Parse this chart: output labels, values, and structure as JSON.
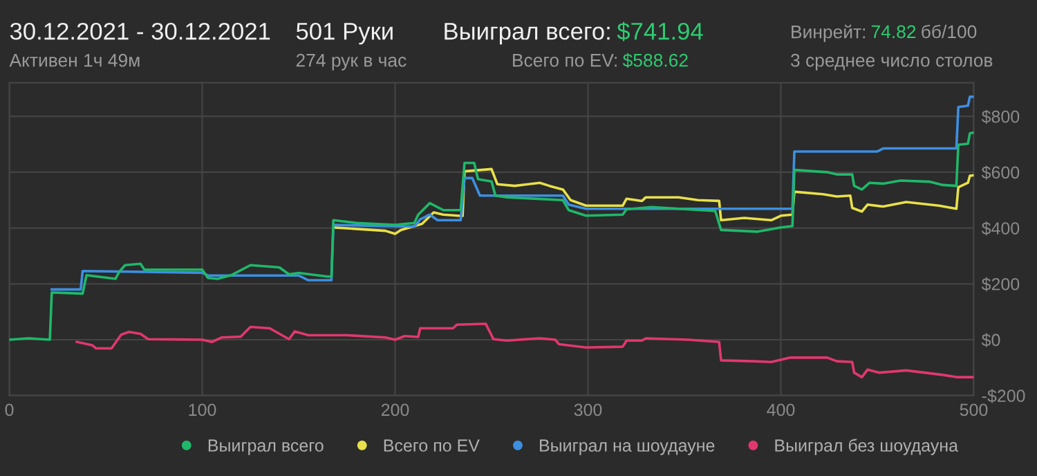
{
  "chart_data": {
    "type": "line",
    "title": "30.12.2021 - 30.12.2021",
    "subtitle": "Активен 1ч 49м",
    "annotations": [
      "501 Руки",
      "274 рук в час",
      "Выиграл всего:",
      "$741.94",
      "Всего по EV:",
      "$588.62",
      "Винрейт:",
      "74.82",
      "бб/100",
      "3 среднее число столов"
    ],
    "xlim": [
      0,
      500
    ],
    "ylim": [
      -200,
      920
    ],
    "xticks": [
      0,
      100,
      200,
      300,
      400,
      500
    ],
    "yticks": [
      {
        "value": -200,
        "label": "-$200"
      },
      {
        "value": 0,
        "label": "$0"
      },
      {
        "value": 200,
        "label": "$200"
      },
      {
        "value": 400,
        "label": "$400"
      },
      {
        "value": 600,
        "label": "$600"
      },
      {
        "value": 800,
        "label": "$800"
      }
    ],
    "grid": true,
    "legend": "bottom",
    "line_style": "solid",
    "series": [
      {
        "name": "Выиграл всего",
        "color": "#1fb86a",
        "x": [
          0,
          10,
          21,
          22,
          38,
          40,
          55,
          57,
          60,
          68,
          70,
          100,
          103,
          108,
          115,
          125,
          140,
          145,
          150,
          165,
          167,
          168,
          180,
          200,
          210,
          212,
          218,
          225,
          234,
          236,
          241,
          243,
          250,
          252,
          258,
          287,
          290,
          299,
          318,
          320,
          333,
          366,
          369,
          388,
          400,
          406,
          407,
          424,
          429,
          437,
          438,
          442,
          446,
          453,
          462,
          477,
          484,
          491,
          492,
          497,
          498,
          500
        ],
        "values": [
          0,
          5,
          0,
          169,
          165,
          231,
          218,
          243,
          267,
          272,
          251,
          251,
          221,
          218,
          231,
          267,
          259,
          234,
          239,
          226,
          226,
          428,
          418,
          411,
          418,
          448,
          489,
          464,
          464,
          633,
          633,
          575,
          567,
          516,
          510,
          500,
          464,
          444,
          448,
          467,
          475,
          461,
          393,
          387,
          402,
          407,
          608,
          600,
          592,
          592,
          551,
          538,
          562,
          559,
          570,
          566,
          554,
          551,
          698,
          702,
          739,
          742
        ]
      },
      {
        "name": "Всего по EV",
        "color": "#e8e04a",
        "x": [
          168,
          195,
          200,
          203,
          214,
          220,
          225,
          235,
          236,
          250,
          253,
          262,
          275,
          280,
          287,
          291,
          299,
          318,
          320,
          328,
          330,
          347,
          357,
          368,
          369,
          381,
          395,
          400,
          406,
          407,
          422,
          429,
          436,
          437,
          442,
          445,
          453,
          465,
          482,
          491,
          492,
          497,
          498,
          500
        ],
        "values": [
          402,
          390,
          379,
          393,
          415,
          456,
          448,
          443,
          603,
          611,
          557,
          551,
          562,
          551,
          538,
          500,
          480,
          480,
          505,
          497,
          510,
          510,
          500,
          497,
          428,
          436,
          428,
          444,
          448,
          530,
          521,
          513,
          516,
          472,
          459,
          484,
          477,
          493,
          480,
          469,
          546,
          562,
          587,
          589
        ]
      },
      {
        "name": "Выиграл на шоудауне",
        "color": "#3d8fe0",
        "x": [
          22,
          37,
          38,
          100,
          103,
          150,
          155,
          167,
          168,
          210,
          213,
          218,
          222,
          234,
          236,
          240,
          244,
          287,
          290,
          299,
          406,
          407,
          450,
          453,
          491,
          492,
          497,
          498,
          500
        ],
        "values": [
          180,
          180,
          246,
          240,
          230,
          230,
          213,
          213,
          411,
          405,
          431,
          448,
          428,
          428,
          579,
          579,
          516,
          516,
          484,
          469,
          469,
          674,
          674,
          685,
          685,
          833,
          838,
          870,
          870
        ]
      },
      {
        "name": "Выиграл без шоудауна",
        "color": "#e0386e",
        "x": [
          35,
          43,
          45,
          53,
          55,
          58,
          62,
          68,
          72,
          100,
          105,
          110,
          120,
          125,
          135,
          145,
          148,
          155,
          175,
          195,
          200,
          205,
          212,
          213,
          230,
          232,
          247,
          251,
          258,
          275,
          283,
          285,
          299,
          318,
          320,
          328,
          330,
          352,
          368,
          369,
          386,
          395,
          405,
          424,
          429,
          437,
          438,
          442,
          445,
          451,
          465,
          484,
          491,
          500
        ],
        "values": [
          -8,
          -20,
          -31,
          -31,
          -11,
          18,
          28,
          21,
          2,
          0,
          -8,
          8,
          11,
          46,
          41,
          2,
          30,
          16,
          16,
          8,
          0,
          13,
          10,
          41,
          41,
          54,
          57,
          2,
          -3,
          5,
          0,
          -16,
          -28,
          -25,
          -3,
          -3,
          5,
          0,
          -8,
          -74,
          -77,
          -80,
          -64,
          -64,
          -77,
          -80,
          -118,
          -134,
          -107,
          -118,
          -110,
          -126,
          -134,
          -134
        ]
      }
    ]
  }
}
